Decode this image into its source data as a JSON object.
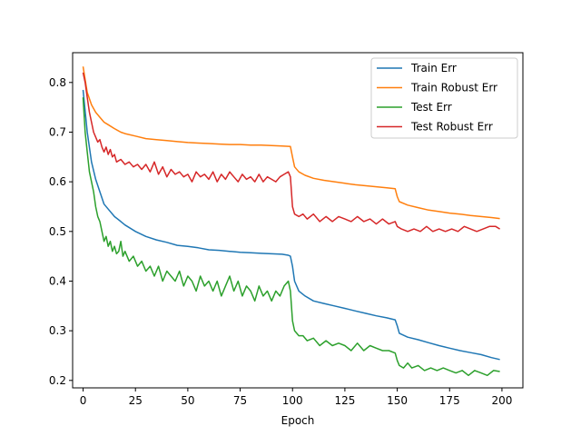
{
  "chart_data": {
    "type": "line",
    "xlabel": "Epoch",
    "ylabel": "",
    "xlim": [
      -5,
      210
    ],
    "ylim": [
      0.185,
      0.86
    ],
    "x_ticks": [
      0,
      25,
      50,
      75,
      100,
      125,
      150,
      175,
      200
    ],
    "y_ticks": [
      0.2,
      0.3,
      0.4,
      0.5,
      0.6,
      0.7,
      0.8
    ],
    "grid": false,
    "legend_position": "top-right",
    "series": [
      {
        "name": "Train Err",
        "color": "#1f77b4",
        "points": [
          [
            0,
            0.785
          ],
          [
            2,
            0.7
          ],
          [
            4,
            0.64
          ],
          [
            6,
            0.605
          ],
          [
            8,
            0.58
          ],
          [
            10,
            0.555
          ],
          [
            12,
            0.545
          ],
          [
            15,
            0.53
          ],
          [
            18,
            0.52
          ],
          [
            20,
            0.513
          ],
          [
            25,
            0.5
          ],
          [
            30,
            0.49
          ],
          [
            35,
            0.483
          ],
          [
            40,
            0.478
          ],
          [
            45,
            0.472
          ],
          [
            50,
            0.47
          ],
          [
            55,
            0.467
          ],
          [
            60,
            0.463
          ],
          [
            65,
            0.462
          ],
          [
            70,
            0.46
          ],
          [
            75,
            0.458
          ],
          [
            80,
            0.457
          ],
          [
            85,
            0.456
          ],
          [
            90,
            0.455
          ],
          [
            95,
            0.454
          ],
          [
            98,
            0.452
          ],
          [
            99,
            0.45
          ],
          [
            100,
            0.43
          ],
          [
            101,
            0.4
          ],
          [
            103,
            0.38
          ],
          [
            106,
            0.37
          ],
          [
            110,
            0.36
          ],
          [
            115,
            0.355
          ],
          [
            120,
            0.35
          ],
          [
            125,
            0.345
          ],
          [
            130,
            0.34
          ],
          [
            135,
            0.335
          ],
          [
            140,
            0.33
          ],
          [
            145,
            0.326
          ],
          [
            149,
            0.322
          ],
          [
            150,
            0.31
          ],
          [
            151,
            0.295
          ],
          [
            155,
            0.287
          ],
          [
            160,
            0.282
          ],
          [
            165,
            0.276
          ],
          [
            170,
            0.27
          ],
          [
            175,
            0.265
          ],
          [
            180,
            0.26
          ],
          [
            185,
            0.256
          ],
          [
            190,
            0.252
          ],
          [
            195,
            0.246
          ],
          [
            199,
            0.242
          ]
        ]
      },
      {
        "name": "Train Robust Err",
        "color": "#ff7f0e",
        "points": [
          [
            0,
            0.832
          ],
          [
            2,
            0.78
          ],
          [
            4,
            0.755
          ],
          [
            6,
            0.74
          ],
          [
            8,
            0.73
          ],
          [
            10,
            0.72
          ],
          [
            12,
            0.715
          ],
          [
            15,
            0.707
          ],
          [
            18,
            0.7
          ],
          [
            20,
            0.697
          ],
          [
            25,
            0.692
          ],
          [
            30,
            0.687
          ],
          [
            35,
            0.685
          ],
          [
            40,
            0.683
          ],
          [
            45,
            0.681
          ],
          [
            50,
            0.679
          ],
          [
            55,
            0.678
          ],
          [
            60,
            0.677
          ],
          [
            65,
            0.676
          ],
          [
            70,
            0.675
          ],
          [
            75,
            0.675
          ],
          [
            80,
            0.674
          ],
          [
            85,
            0.674
          ],
          [
            90,
            0.673
          ],
          [
            95,
            0.672
          ],
          [
            99,
            0.671
          ],
          [
            100,
            0.65
          ],
          [
            101,
            0.63
          ],
          [
            103,
            0.62
          ],
          [
            106,
            0.613
          ],
          [
            110,
            0.607
          ],
          [
            115,
            0.603
          ],
          [
            120,
            0.6
          ],
          [
            125,
            0.597
          ],
          [
            130,
            0.594
          ],
          [
            135,
            0.592
          ],
          [
            140,
            0.59
          ],
          [
            145,
            0.588
          ],
          [
            149,
            0.586
          ],
          [
            150,
            0.57
          ],
          [
            151,
            0.56
          ],
          [
            155,
            0.553
          ],
          [
            160,
            0.548
          ],
          [
            165,
            0.543
          ],
          [
            170,
            0.54
          ],
          [
            175,
            0.537
          ],
          [
            180,
            0.535
          ],
          [
            185,
            0.532
          ],
          [
            190,
            0.53
          ],
          [
            195,
            0.528
          ],
          [
            199,
            0.526
          ]
        ]
      },
      {
        "name": "Test Err",
        "color": "#2ca02c",
        "points": [
          [
            0,
            0.77
          ],
          [
            1,
            0.7
          ],
          [
            2,
            0.66
          ],
          [
            3,
            0.62
          ],
          [
            4,
            0.6
          ],
          [
            5,
            0.58
          ],
          [
            6,
            0.55
          ],
          [
            7,
            0.53
          ],
          [
            8,
            0.52
          ],
          [
            9,
            0.5
          ],
          [
            10,
            0.48
          ],
          [
            11,
            0.49
          ],
          [
            12,
            0.47
          ],
          [
            13,
            0.48
          ],
          [
            14,
            0.46
          ],
          [
            15,
            0.47
          ],
          [
            16,
            0.455
          ],
          [
            17,
            0.46
          ],
          [
            18,
            0.48
          ],
          [
            19,
            0.45
          ],
          [
            20,
            0.46
          ],
          [
            22,
            0.44
          ],
          [
            24,
            0.45
          ],
          [
            26,
            0.43
          ],
          [
            28,
            0.44
          ],
          [
            30,
            0.42
          ],
          [
            32,
            0.43
          ],
          [
            34,
            0.41
          ],
          [
            36,
            0.43
          ],
          [
            38,
            0.4
          ],
          [
            40,
            0.42
          ],
          [
            42,
            0.41
          ],
          [
            44,
            0.4
          ],
          [
            46,
            0.42
          ],
          [
            48,
            0.39
          ],
          [
            50,
            0.41
          ],
          [
            52,
            0.4
          ],
          [
            54,
            0.38
          ],
          [
            56,
            0.41
          ],
          [
            58,
            0.39
          ],
          [
            60,
            0.4
          ],
          [
            62,
            0.38
          ],
          [
            64,
            0.4
          ],
          [
            66,
            0.37
          ],
          [
            68,
            0.39
          ],
          [
            70,
            0.41
          ],
          [
            72,
            0.38
          ],
          [
            74,
            0.4
          ],
          [
            76,
            0.37
          ],
          [
            78,
            0.39
          ],
          [
            80,
            0.38
          ],
          [
            82,
            0.36
          ],
          [
            84,
            0.39
          ],
          [
            86,
            0.37
          ],
          [
            88,
            0.38
          ],
          [
            90,
            0.36
          ],
          [
            92,
            0.38
          ],
          [
            94,
            0.37
          ],
          [
            96,
            0.39
          ],
          [
            98,
            0.4
          ],
          [
            99,
            0.38
          ],
          [
            100,
            0.32
          ],
          [
            101,
            0.3
          ],
          [
            103,
            0.29
          ],
          [
            105,
            0.29
          ],
          [
            107,
            0.28
          ],
          [
            110,
            0.285
          ],
          [
            113,
            0.27
          ],
          [
            116,
            0.28
          ],
          [
            119,
            0.27
          ],
          [
            122,
            0.275
          ],
          [
            125,
            0.27
          ],
          [
            128,
            0.26
          ],
          [
            131,
            0.275
          ],
          [
            134,
            0.26
          ],
          [
            137,
            0.27
          ],
          [
            140,
            0.265
          ],
          [
            143,
            0.26
          ],
          [
            146,
            0.26
          ],
          [
            149,
            0.255
          ],
          [
            150,
            0.24
          ],
          [
            151,
            0.23
          ],
          [
            153,
            0.225
          ],
          [
            155,
            0.235
          ],
          [
            157,
            0.225
          ],
          [
            160,
            0.23
          ],
          [
            163,
            0.22
          ],
          [
            166,
            0.225
          ],
          [
            169,
            0.22
          ],
          [
            172,
            0.225
          ],
          [
            175,
            0.22
          ],
          [
            178,
            0.215
          ],
          [
            181,
            0.22
          ],
          [
            184,
            0.21
          ],
          [
            187,
            0.22
          ],
          [
            190,
            0.215
          ],
          [
            193,
            0.21
          ],
          [
            196,
            0.22
          ],
          [
            199,
            0.218
          ]
        ]
      },
      {
        "name": "Test Robust Err",
        "color": "#d62728",
        "points": [
          [
            0,
            0.82
          ],
          [
            1,
            0.8
          ],
          [
            2,
            0.77
          ],
          [
            3,
            0.74
          ],
          [
            4,
            0.72
          ],
          [
            5,
            0.7
          ],
          [
            6,
            0.69
          ],
          [
            7,
            0.68
          ],
          [
            8,
            0.685
          ],
          [
            9,
            0.67
          ],
          [
            10,
            0.66
          ],
          [
            11,
            0.67
          ],
          [
            12,
            0.655
          ],
          [
            13,
            0.665
          ],
          [
            14,
            0.65
          ],
          [
            15,
            0.655
          ],
          [
            16,
            0.64
          ],
          [
            18,
            0.645
          ],
          [
            20,
            0.635
          ],
          [
            22,
            0.64
          ],
          [
            24,
            0.63
          ],
          [
            26,
            0.635
          ],
          [
            28,
            0.625
          ],
          [
            30,
            0.635
          ],
          [
            32,
            0.62
          ],
          [
            34,
            0.64
          ],
          [
            36,
            0.615
          ],
          [
            38,
            0.63
          ],
          [
            40,
            0.61
          ],
          [
            42,
            0.625
          ],
          [
            44,
            0.615
          ],
          [
            46,
            0.62
          ],
          [
            48,
            0.61
          ],
          [
            50,
            0.615
          ],
          [
            52,
            0.6
          ],
          [
            54,
            0.62
          ],
          [
            56,
            0.61
          ],
          [
            58,
            0.615
          ],
          [
            60,
            0.605
          ],
          [
            62,
            0.62
          ],
          [
            64,
            0.6
          ],
          [
            66,
            0.615
          ],
          [
            68,
            0.605
          ],
          [
            70,
            0.62
          ],
          [
            72,
            0.61
          ],
          [
            74,
            0.6
          ],
          [
            76,
            0.615
          ],
          [
            78,
            0.605
          ],
          [
            80,
            0.61
          ],
          [
            82,
            0.6
          ],
          [
            84,
            0.615
          ],
          [
            86,
            0.6
          ],
          [
            88,
            0.61
          ],
          [
            90,
            0.605
          ],
          [
            92,
            0.6
          ],
          [
            94,
            0.61
          ],
          [
            96,
            0.615
          ],
          [
            98,
            0.62
          ],
          [
            99,
            0.61
          ],
          [
            100,
            0.55
          ],
          [
            101,
            0.535
          ],
          [
            103,
            0.53
          ],
          [
            105,
            0.535
          ],
          [
            107,
            0.525
          ],
          [
            110,
            0.535
          ],
          [
            113,
            0.52
          ],
          [
            116,
            0.53
          ],
          [
            119,
            0.52
          ],
          [
            122,
            0.53
          ],
          [
            125,
            0.525
          ],
          [
            128,
            0.52
          ],
          [
            131,
            0.53
          ],
          [
            134,
            0.52
          ],
          [
            137,
            0.525
          ],
          [
            140,
            0.515
          ],
          [
            143,
            0.525
          ],
          [
            146,
            0.515
          ],
          [
            149,
            0.52
          ],
          [
            150,
            0.51
          ],
          [
            152,
            0.505
          ],
          [
            155,
            0.5
          ],
          [
            158,
            0.505
          ],
          [
            161,
            0.5
          ],
          [
            164,
            0.51
          ],
          [
            167,
            0.5
          ],
          [
            170,
            0.505
          ],
          [
            173,
            0.5
          ],
          [
            176,
            0.505
          ],
          [
            179,
            0.5
          ],
          [
            182,
            0.51
          ],
          [
            185,
            0.505
          ],
          [
            188,
            0.5
          ],
          [
            191,
            0.505
          ],
          [
            194,
            0.51
          ],
          [
            197,
            0.51
          ],
          [
            199,
            0.505
          ]
        ]
      }
    ]
  }
}
